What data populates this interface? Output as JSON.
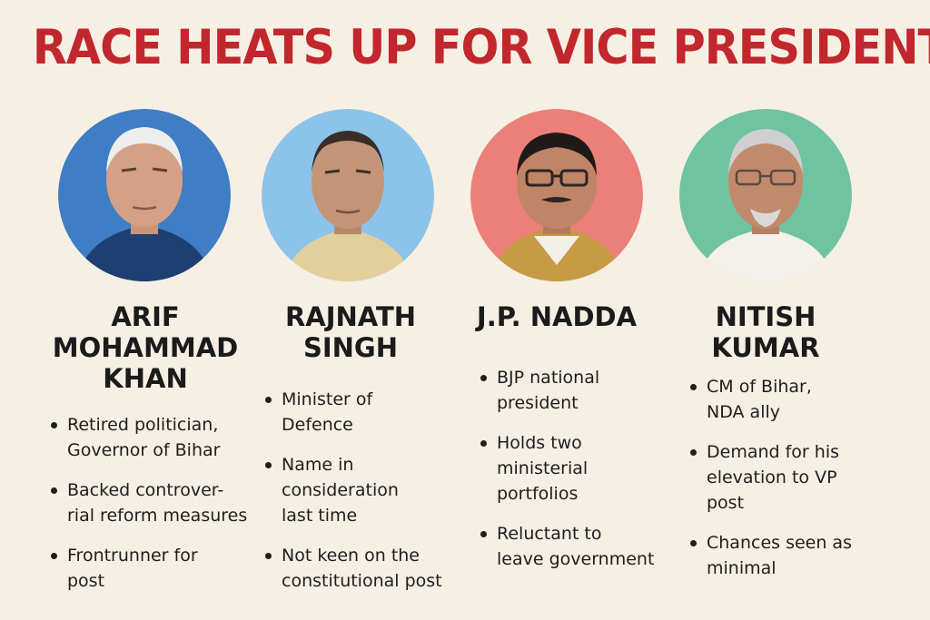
{
  "headline": "RACE HEATS UP FOR VICE PRESIDENT",
  "colors": {
    "headline": "#c1272d",
    "background": "#f6efe4",
    "portrait_backgrounds": [
      "#3f7ec4",
      "#8cc3ea",
      "#ec7f79",
      "#6fc3a1"
    ]
  },
  "candidates": [
    {
      "name_lines": [
        "ARIF",
        "MOHAMMAD",
        "KHAN"
      ],
      "bullets": [
        [
          "Retired politician,",
          "Governor of Bihar"
        ],
        [
          "Backed controver-",
          "rial reform measures"
        ],
        [
          "Frontrunner for",
          "post"
        ]
      ]
    },
    {
      "name_lines": [
        "RAJNATH",
        "SINGH"
      ],
      "bullets": [
        [
          "Minister of",
          "Defence"
        ],
        [
          "Name in",
          "consideration",
          "last time"
        ],
        [
          "Not keen on the",
          "constitutional post"
        ]
      ]
    },
    {
      "name_lines": [
        "J.P. NADDA"
      ],
      "bullets": [
        [
          "BJP national",
          "president"
        ],
        [
          "Holds two",
          "ministerial",
          "portfolios"
        ],
        [
          "Reluctant to",
          "leave government"
        ]
      ]
    },
    {
      "name_lines": [
        "NITISH",
        "KUMAR"
      ],
      "bullets": [
        [
          "CM of Bihar,",
          "NDA ally"
        ],
        [
          "Demand for his",
          "elevation to VP",
          "post"
        ],
        [
          "Chances seen as",
          "minimal"
        ]
      ]
    }
  ]
}
